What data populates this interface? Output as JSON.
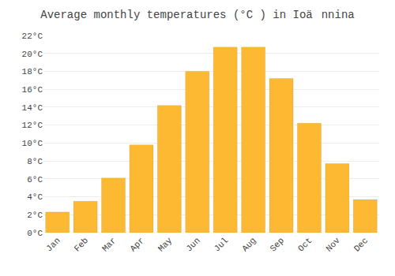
{
  "chart_data": {
    "type": "bar",
    "title": "Average monthly temperatures (°C ) in Ioännina",
    "categories": [
      "Jan",
      "Feb",
      "Mar",
      "Apr",
      "May",
      "Jun",
      "Jul",
      "Aug",
      "Sep",
      "Oct",
      "Nov",
      "Dec"
    ],
    "values": [
      2.3,
      3.5,
      6.1,
      9.8,
      14.2,
      18.0,
      20.7,
      20.7,
      17.2,
      12.2,
      7.7,
      3.7
    ],
    "color": "#FDB931",
    "ylim": [
      0,
      22
    ],
    "yticks": [
      {
        "value": 0,
        "label": "0°C"
      },
      {
        "value": 2,
        "label": "2°C"
      },
      {
        "value": 4,
        "label": "4°C"
      },
      {
        "value": 6,
        "label": "6°C"
      },
      {
        "value": 8,
        "label": "8°C"
      },
      {
        "value": 10,
        "label": "10°C"
      },
      {
        "value": 12,
        "label": "12°C"
      },
      {
        "value": 14,
        "label": "14°C"
      },
      {
        "value": 16,
        "label": "16°C"
      },
      {
        "value": 18,
        "label": "18°C"
      },
      {
        "value": 20,
        "label": "20°C"
      },
      {
        "value": 22,
        "label": "22°C"
      }
    ],
    "grid": true
  }
}
